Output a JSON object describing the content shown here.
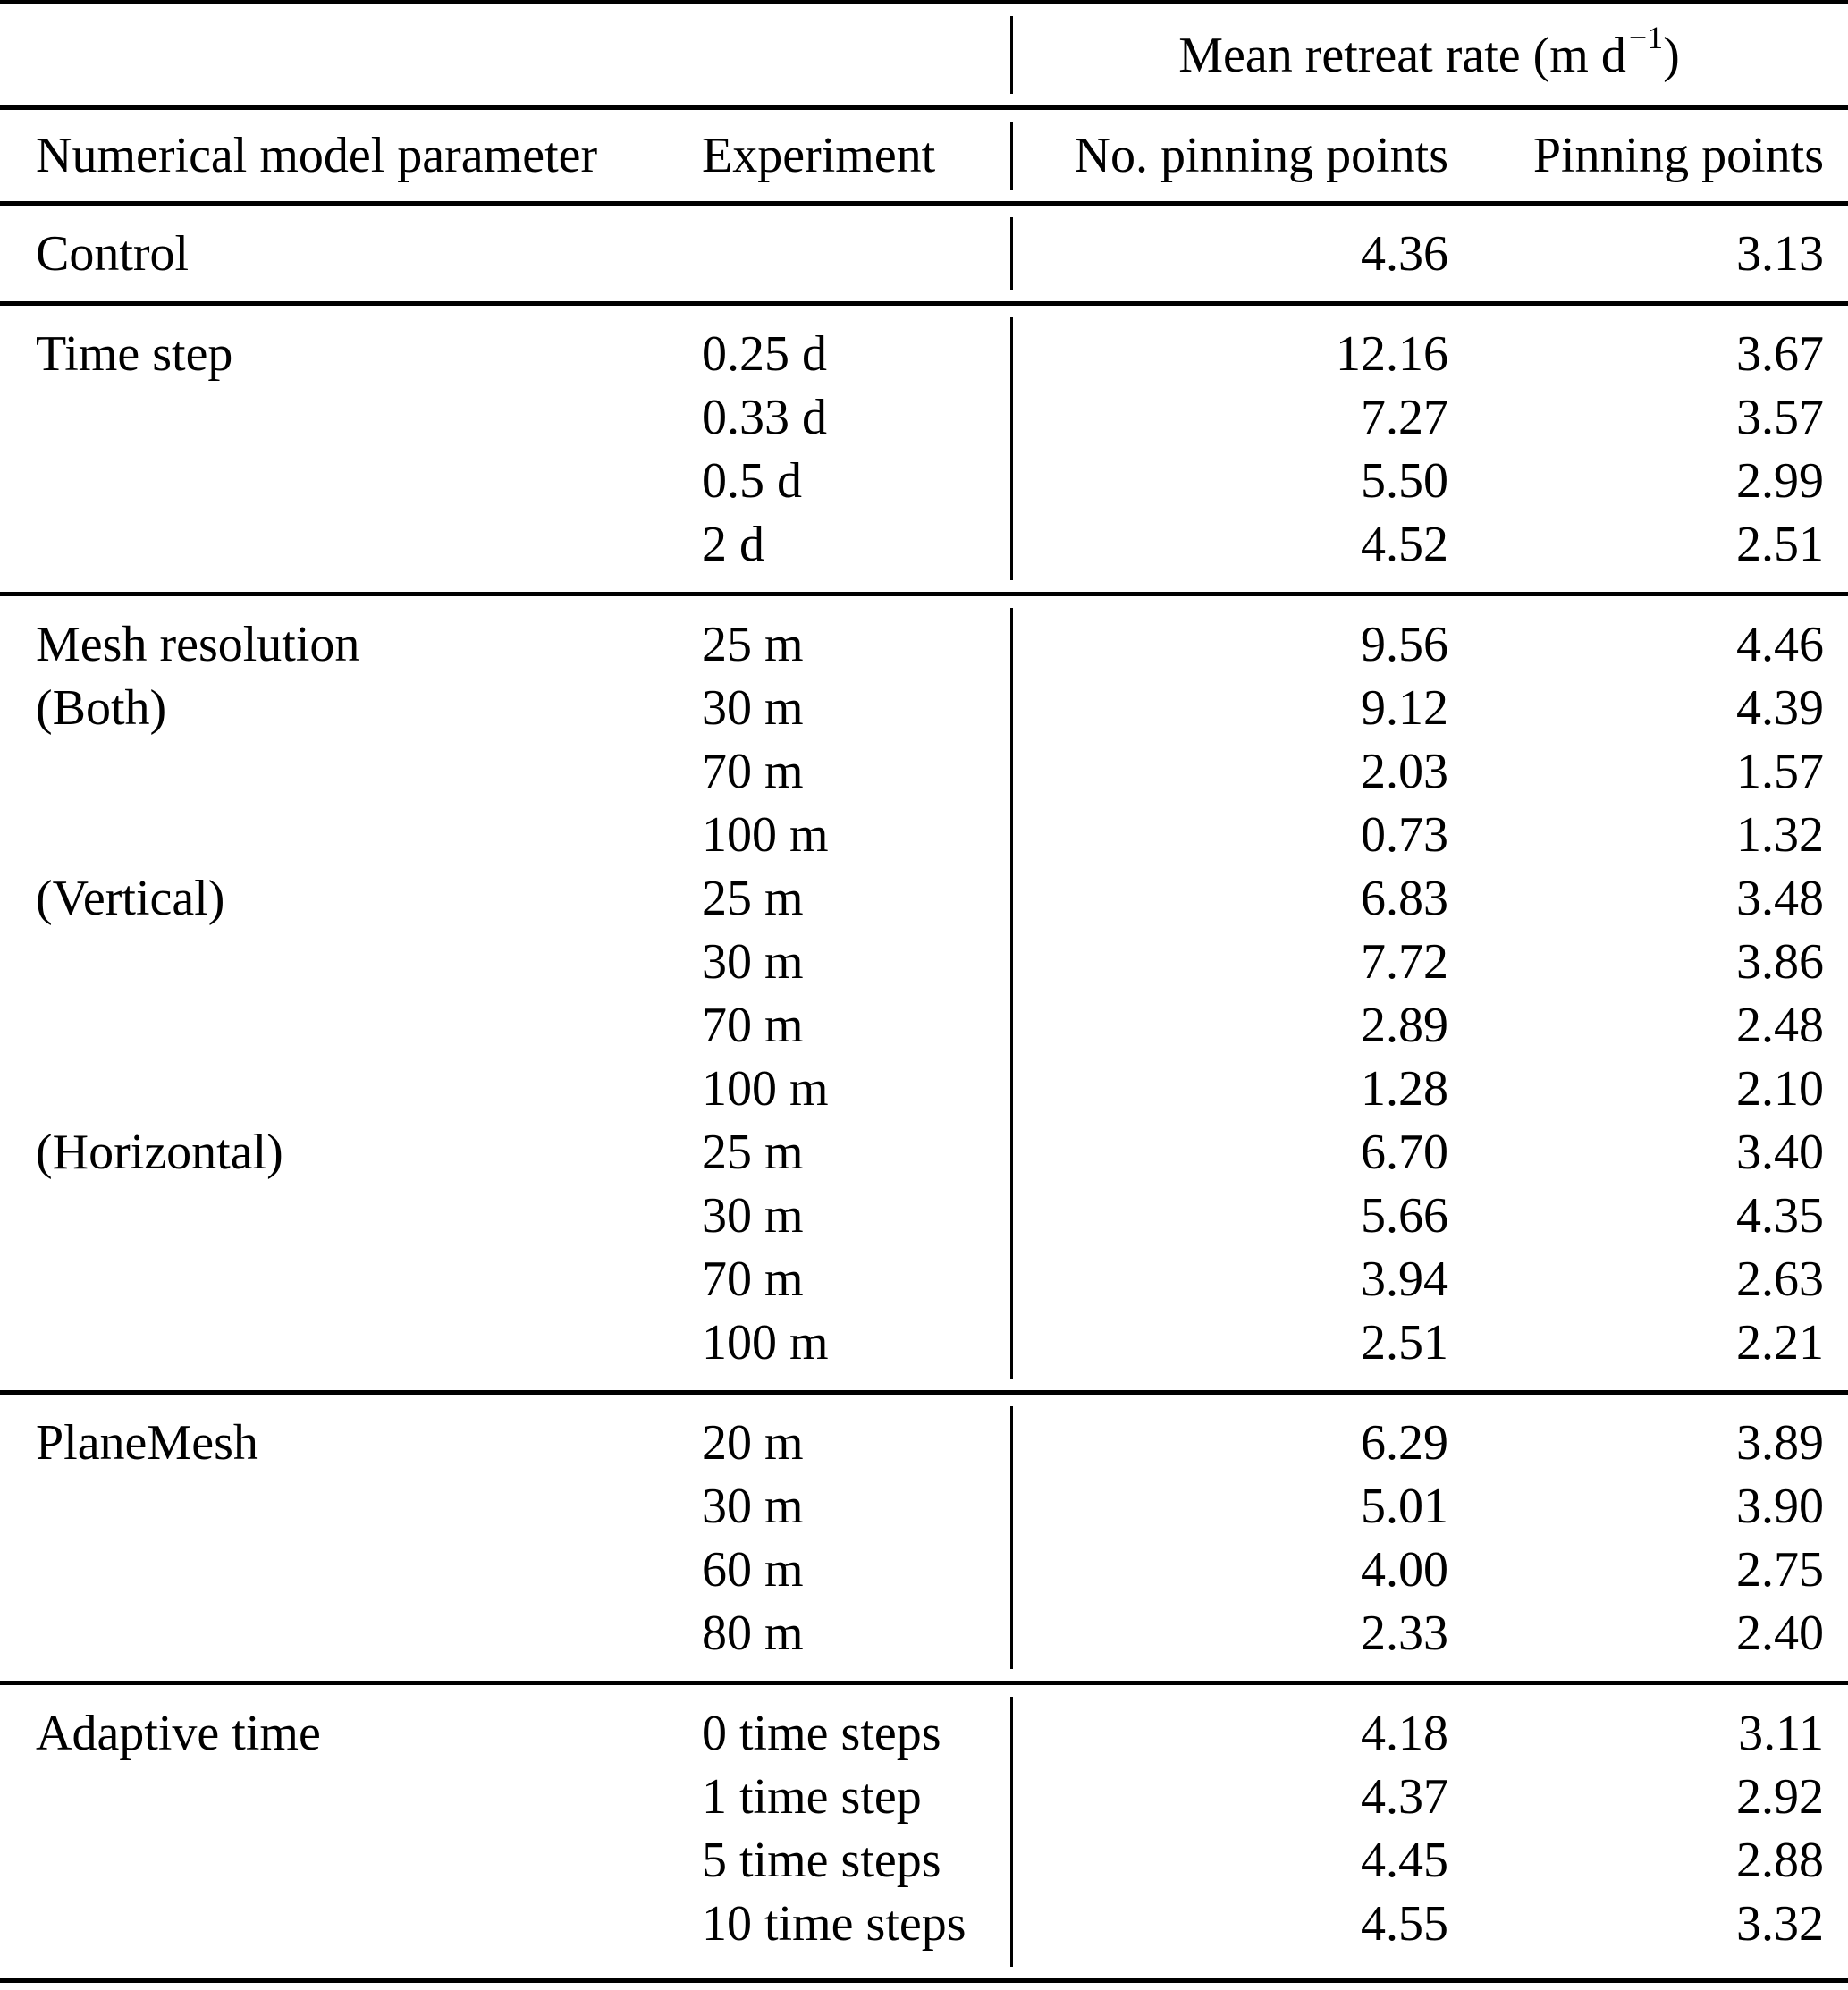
{
  "table": {
    "group_header": {
      "text": "Mean retreat rate (m d",
      "sup": "−1",
      "close": ")"
    },
    "columns": [
      "Numerical model parameter",
      "Experiment",
      "No. pinning points",
      "Pinning points"
    ],
    "sections": [
      {
        "rows": [
          {
            "param": "Control",
            "experiment": "",
            "no_pinning": "4.36",
            "pinning": "3.13"
          }
        ]
      },
      {
        "rows": [
          {
            "param": "Time step",
            "experiment": "0.25 d",
            "no_pinning": "12.16",
            "pinning": "3.67"
          },
          {
            "param": "",
            "experiment": "0.33 d",
            "no_pinning": "7.27",
            "pinning": "3.57"
          },
          {
            "param": "",
            "experiment": "0.5 d",
            "no_pinning": "5.50",
            "pinning": "2.99"
          },
          {
            "param": "",
            "experiment": "2 d",
            "no_pinning": "4.52",
            "pinning": "2.51"
          }
        ]
      },
      {
        "rows": [
          {
            "param": "Mesh resolution",
            "experiment": "25 m",
            "no_pinning": "9.56",
            "pinning": "4.46"
          },
          {
            "param": "(Both)",
            "experiment": "30 m",
            "no_pinning": "9.12",
            "pinning": "4.39"
          },
          {
            "param": "",
            "experiment": "70 m",
            "no_pinning": "2.03",
            "pinning": "1.57"
          },
          {
            "param": "",
            "experiment": "100 m",
            "no_pinning": "0.73",
            "pinning": "1.32"
          },
          {
            "param": "(Vertical)",
            "experiment": "25 m",
            "no_pinning": "6.83",
            "pinning": "3.48"
          },
          {
            "param": "",
            "experiment": "30 m",
            "no_pinning": "7.72",
            "pinning": "3.86"
          },
          {
            "param": "",
            "experiment": "70 m",
            "no_pinning": "2.89",
            "pinning": "2.48"
          },
          {
            "param": "",
            "experiment": "100 m",
            "no_pinning": "1.28",
            "pinning": "2.10"
          },
          {
            "param": "(Horizontal)",
            "experiment": "25 m",
            "no_pinning": "6.70",
            "pinning": "3.40"
          },
          {
            "param": "",
            "experiment": "30 m",
            "no_pinning": "5.66",
            "pinning": "4.35"
          },
          {
            "param": "",
            "experiment": "70 m",
            "no_pinning": "3.94",
            "pinning": "2.63"
          },
          {
            "param": "",
            "experiment": "100 m",
            "no_pinning": "2.51",
            "pinning": "2.21"
          }
        ]
      },
      {
        "rows": [
          {
            "param": "PlaneMesh",
            "experiment": "20 m",
            "no_pinning": "6.29",
            "pinning": "3.89"
          },
          {
            "param": "",
            "experiment": "30 m",
            "no_pinning": "5.01",
            "pinning": "3.90"
          },
          {
            "param": "",
            "experiment": "60 m",
            "no_pinning": "4.00",
            "pinning": "2.75"
          },
          {
            "param": "",
            "experiment": "80 m",
            "no_pinning": "2.33",
            "pinning": "2.40"
          }
        ]
      },
      {
        "rows": [
          {
            "param": "Adaptive time",
            "experiment": "0 time steps",
            "no_pinning": "4.18",
            "pinning": "3.11"
          },
          {
            "param": "",
            "experiment": "1 time step",
            "no_pinning": "4.37",
            "pinning": "2.92"
          },
          {
            "param": "",
            "experiment": "5 time steps",
            "no_pinning": "4.45",
            "pinning": "2.88"
          },
          {
            "param": "",
            "experiment": "10 time steps",
            "no_pinning": "4.55",
            "pinning": "3.32"
          }
        ]
      }
    ]
  }
}
